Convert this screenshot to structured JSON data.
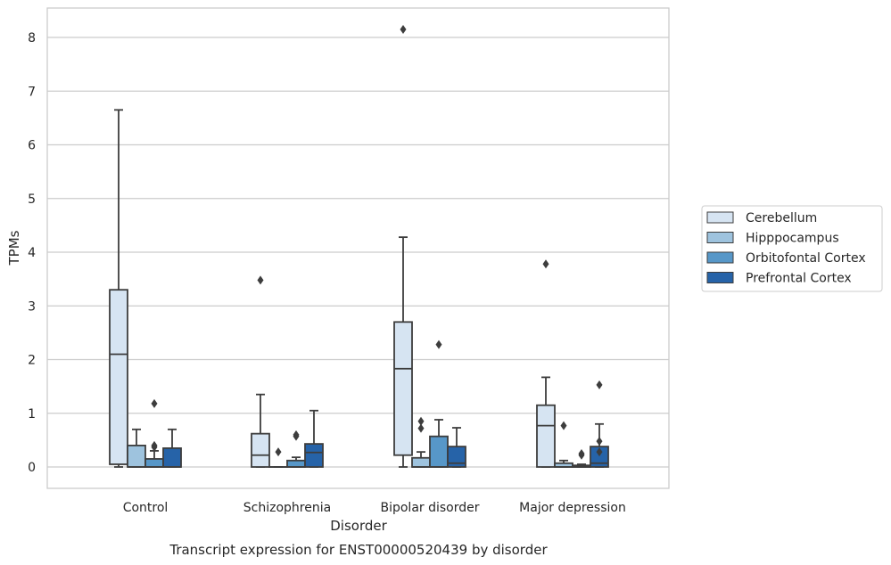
{
  "chart_data": {
    "type": "box",
    "title": "",
    "caption": "Transcript expression for ENST00000520439 by disorder",
    "xlabel": "Disorder",
    "ylabel": "TPMs",
    "ylim": [
      -0.4,
      8.55
    ],
    "yticks": [
      0,
      1,
      2,
      3,
      4,
      5,
      6,
      7,
      8
    ],
    "grid": "horizontal",
    "legend_position": "right",
    "categories": [
      "Control",
      "Schizophrenia",
      "Bipolar disorder",
      "Major depression"
    ],
    "series": [
      {
        "name": "Cerebellum",
        "color": "#d6e4f2",
        "boxes": [
          {
            "whisker_low": 0.0,
            "q1": 0.05,
            "median": 2.1,
            "q3": 3.3,
            "whisker_high": 6.65,
            "outliers": []
          },
          {
            "whisker_low": 0.0,
            "q1": 0.0,
            "median": 0.22,
            "q3": 0.62,
            "whisker_high": 1.35,
            "outliers": [
              3.48
            ]
          },
          {
            "whisker_low": 0.0,
            "q1": 0.22,
            "median": 1.83,
            "q3": 2.7,
            "whisker_high": 4.28,
            "outliers": [
              8.15
            ]
          },
          {
            "whisker_low": 0.0,
            "q1": 0.0,
            "median": 0.77,
            "q3": 1.15,
            "whisker_high": 1.67,
            "outliers": [
              3.78
            ]
          }
        ]
      },
      {
        "name": "Hipppocampus",
        "color": "#9ec3de",
        "boxes": [
          {
            "whisker_low": 0.0,
            "q1": 0.0,
            "median": 0.0,
            "q3": 0.4,
            "whisker_high": 0.7,
            "outliers": []
          },
          {
            "whisker_low": 0.0,
            "q1": 0.0,
            "median": 0.0,
            "q3": 0.0,
            "whisker_high": 0.0,
            "outliers": [
              0.28
            ]
          },
          {
            "whisker_low": 0.0,
            "q1": 0.0,
            "median": 0.0,
            "q3": 0.17,
            "whisker_high": 0.28,
            "outliers": [
              0.72,
              0.85
            ]
          },
          {
            "whisker_low": 0.0,
            "q1": 0.0,
            "median": 0.0,
            "q3": 0.07,
            "whisker_high": 0.12,
            "outliers": [
              0.77
            ]
          }
        ]
      },
      {
        "name": "Orbitofontal Cortex",
        "color": "#5797c8",
        "boxes": [
          {
            "whisker_low": 0.0,
            "q1": 0.0,
            "median": 0.0,
            "q3": 0.15,
            "whisker_high": 0.3,
            "outliers": [
              0.37,
              0.4,
              1.18
            ]
          },
          {
            "whisker_low": 0.0,
            "q1": 0.0,
            "median": 0.0,
            "q3": 0.12,
            "whisker_high": 0.18,
            "outliers": [
              0.57,
              0.6
            ]
          },
          {
            "whisker_low": 0.0,
            "q1": 0.0,
            "median": 0.0,
            "q3": 0.57,
            "whisker_high": 0.88,
            "outliers": [
              2.28
            ]
          },
          {
            "whisker_low": 0.0,
            "q1": 0.0,
            "median": 0.0,
            "q3": 0.03,
            "whisker_high": 0.05,
            "outliers": [
              0.22,
              0.25
            ]
          }
        ]
      },
      {
        "name": "Prefrontal Cortex",
        "color": "#2663a8",
        "boxes": [
          {
            "whisker_low": 0.0,
            "q1": 0.0,
            "median": 0.0,
            "q3": 0.35,
            "whisker_high": 0.7,
            "outliers": []
          },
          {
            "whisker_low": 0.0,
            "q1": 0.0,
            "median": 0.27,
            "q3": 0.43,
            "whisker_high": 1.05,
            "outliers": []
          },
          {
            "whisker_low": 0.0,
            "q1": 0.0,
            "median": 0.07,
            "q3": 0.38,
            "whisker_high": 0.73,
            "outliers": []
          },
          {
            "whisker_low": 0.0,
            "q1": 0.0,
            "median": 0.07,
            "q3": 0.38,
            "whisker_high": 0.8,
            "outliers": [
              0.28,
              0.48,
              1.53
            ]
          }
        ]
      }
    ]
  }
}
